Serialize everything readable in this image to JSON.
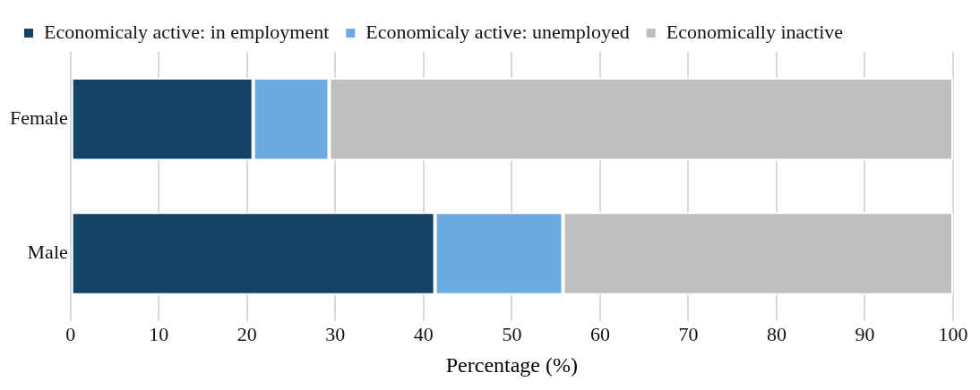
{
  "chart_data": {
    "type": "bar",
    "orientation": "horizontal",
    "stacked": true,
    "categories": [
      "Female",
      "Male"
    ],
    "series": [
      {
        "name": "Economicaly active: in employment",
        "color": "#134369",
        "values": [
          20.7,
          41.3
        ]
      },
      {
        "name": "Economicaly active: unemployed",
        "color": "#6caae4",
        "values": [
          8.6,
          14.5
        ]
      },
      {
        "name": "Economically inactive",
        "color": "#bfbfbf",
        "values": [
          70.7,
          44.2
        ]
      }
    ],
    "xlabel": "Percentage (%)",
    "xlim": [
      0,
      100
    ],
    "xticks": [
      0,
      10,
      20,
      30,
      40,
      50,
      60,
      70,
      80,
      90,
      100
    ],
    "grid": "x",
    "legend": "top"
  }
}
